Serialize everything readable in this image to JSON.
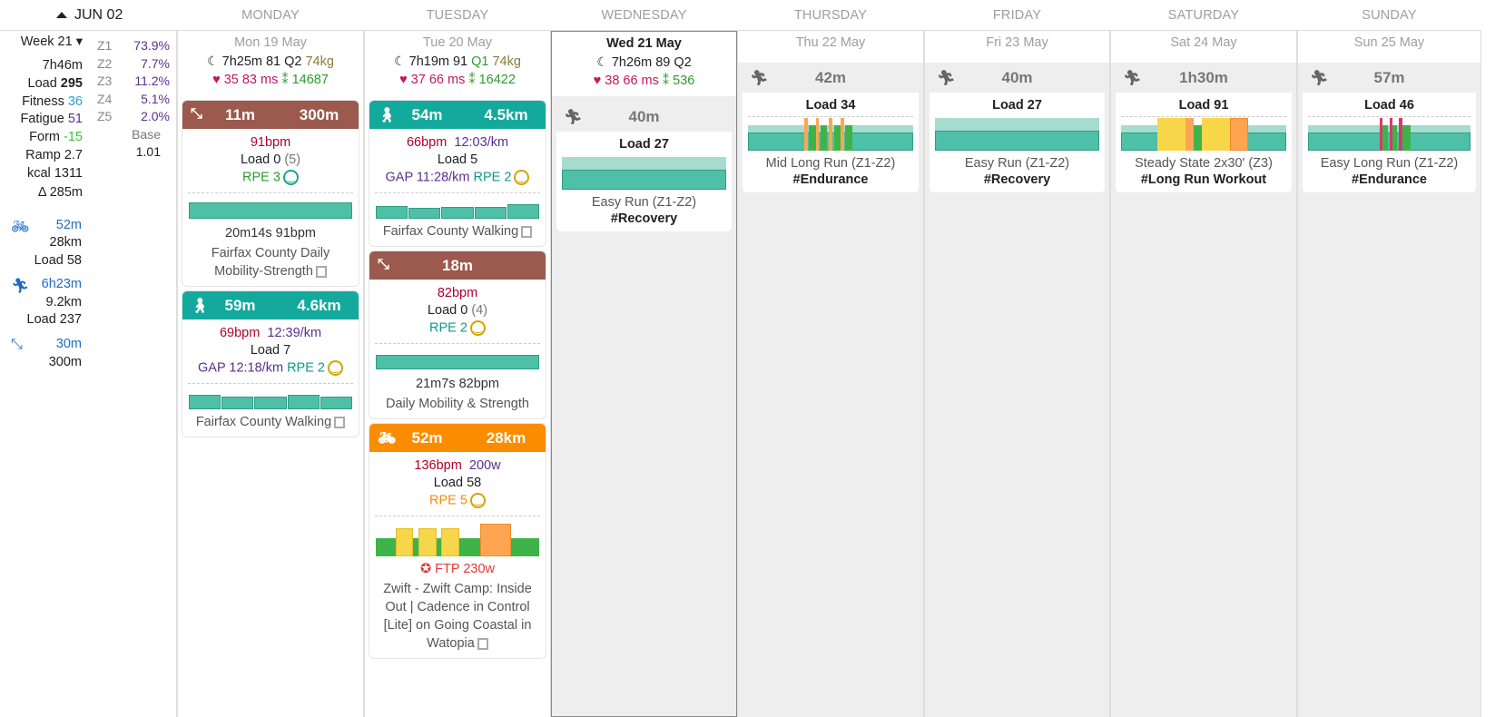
{
  "week_label": "JUN 02",
  "days": [
    "MONDAY",
    "TUESDAY",
    "WEDNESDAY",
    "THURSDAY",
    "FRIDAY",
    "SATURDAY",
    "SUNDAY"
  ],
  "sidebar": {
    "week": "Week 21",
    "time": "7h46m",
    "load_label": "Load",
    "load": "295",
    "fitness_label": "Fitness",
    "fitness": "36",
    "fatigue_label": "Fatigue",
    "fatigue": "51",
    "form_label": "Form",
    "form": "-15",
    "ramp_label": "Ramp",
    "ramp": "2.7",
    "kcal_label": "kcal",
    "kcal": "1311",
    "elev": "Δ 285m",
    "zones": [
      {
        "z": "Z1",
        "v": "73.9%"
      },
      {
        "z": "Z2",
        "v": "7.7%"
      },
      {
        "z": "Z3",
        "v": "11.2%"
      },
      {
        "z": "Z4",
        "v": "5.1%"
      },
      {
        "z": "Z5",
        "v": "2.0%"
      }
    ],
    "base_label": "Base",
    "base": "1.01",
    "ride": {
      "time": "52m",
      "dist": "28km",
      "load": "Load 58"
    },
    "run": {
      "time": "6h23m",
      "dist": "9.2km",
      "load": "Load 237"
    },
    "mob": {
      "time": "30m",
      "dist": "300m"
    }
  },
  "mon": {
    "date": "Mon 19 May",
    "sleep": "7h25m",
    "sleepscore": "81",
    "q": "Q2",
    "kg": "74kg",
    "rhr": "35",
    "hrv": "83 ms",
    "steps": "14687",
    "a1": {
      "time": "11m",
      "dist": "300m",
      "hr": "91bpm",
      "load": "Load 0",
      "load2": "(5)",
      "rpe": "RPE 3",
      "stat": "20m14s 91bpm",
      "title": "Fairfax County Daily Mobility-Strength"
    },
    "a2": {
      "time": "59m",
      "dist": "4.6km",
      "hr": "69bpm",
      "pace": "12:39/km",
      "load": "Load 7",
      "gap": "GAP 12:18/km",
      "rpe": "RPE 2",
      "title": "Fairfax County Walking"
    }
  },
  "tue": {
    "date": "Tue 20 May",
    "sleep": "7h19m",
    "sleepscore": "91",
    "q": "Q1",
    "kg": "74kg",
    "rhr": "37",
    "hrv": "66 ms",
    "steps": "16422",
    "a1": {
      "time": "54m",
      "dist": "4.5km",
      "hr": "66bpm",
      "pace": "12:03/km",
      "load": "Load 5",
      "gap": "GAP 11:28/km",
      "rpe": "RPE 2",
      "title": "Fairfax County Walking"
    },
    "a2": {
      "time": "18m",
      "hr": "82bpm",
      "load": "Load 0",
      "load2": "(4)",
      "rpe": "RPE 2",
      "stat": "21m7s 82bpm",
      "title": "Daily Mobility & Strength"
    },
    "a3": {
      "time": "52m",
      "dist": "28km",
      "hr": "136bpm",
      "power": "200w",
      "load": "Load 58",
      "rpe": "RPE 5",
      "ftp": "FTP 230w",
      "title": "Zwift - Zwift Camp: Inside Out | Cadence in Control [Lite] on Going Coastal in Watopia"
    }
  },
  "wed": {
    "date": "Wed 21 May",
    "sleep": "7h26m",
    "sleepscore": "89",
    "q": "Q2",
    "rhr": "38",
    "hrv": "66 ms",
    "steps": "536",
    "p": {
      "time": "40m",
      "load": "Load 27",
      "name": "Easy Run (Z1-Z2)",
      "tag": "#Recovery"
    }
  },
  "thu": {
    "date": "Thu 22 May",
    "p": {
      "time": "42m",
      "load": "Load 34",
      "name": "Mid Long Run (Z1-Z2)",
      "tag": "#Endurance"
    }
  },
  "fri": {
    "date": "Fri 23 May",
    "p": {
      "time": "40m",
      "load": "Load 27",
      "name": "Easy Run (Z1-Z2)",
      "tag": "#Recovery"
    }
  },
  "sat": {
    "date": "Sat 24 May",
    "p": {
      "time": "1h30m",
      "load": "Load 91",
      "name": "Steady State 2x30' (Z3)",
      "tag": "#Long Run Workout"
    }
  },
  "sun": {
    "date": "Sun 25 May",
    "p": {
      "time": "57m",
      "load": "Load 46",
      "name": "Easy Long Run (Z1-Z2)",
      "tag": "#Endurance"
    }
  }
}
